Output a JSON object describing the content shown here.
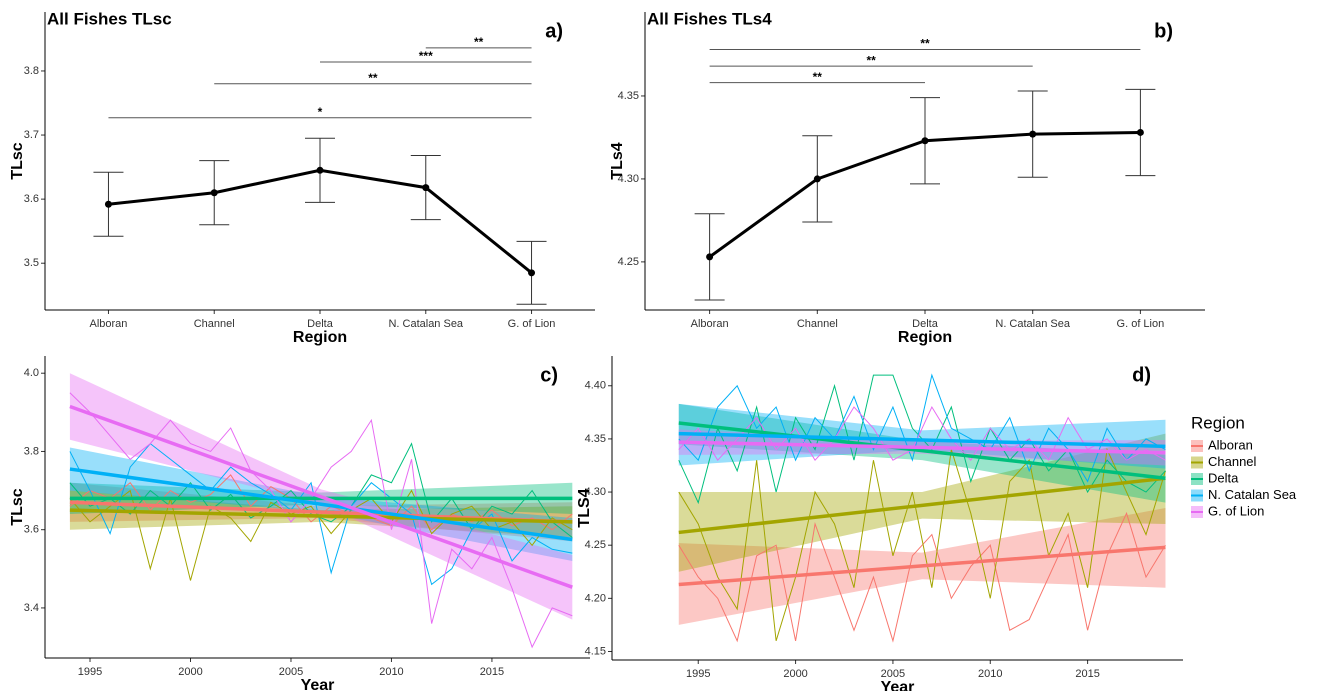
{
  "chart_data": [
    {
      "type": "line",
      "title": "All Fishes TLsc",
      "panel_label": "a)",
      "x_label": "Region",
      "y_label": "TLsc",
      "categories": [
        "Alboran",
        "Channel",
        "Delta",
        "N. Catalan Sea",
        "G. of Lion"
      ],
      "values": [
        3.592,
        3.61,
        3.645,
        3.618,
        3.485
      ],
      "errors": [
        0.05,
        0.05,
        0.05,
        0.05,
        0.049
      ],
      "color": "#000000",
      "ylim": [
        3.427,
        3.892
      ],
      "yticks": [
        3.5,
        3.6,
        3.7,
        3.8
      ],
      "brackets": [
        {
          "from": 0,
          "to": 4,
          "y": 3.727,
          "label": "*"
        },
        {
          "from": 1,
          "to": 4,
          "y": 3.78,
          "label": "**"
        },
        {
          "from": 2,
          "to": 4,
          "y": 3.814,
          "label": "***"
        },
        {
          "from": 3,
          "to": 4,
          "y": 3.836,
          "label": "**"
        }
      ]
    },
    {
      "type": "line",
      "title": "All Fishes TLs4",
      "panel_label": "b)",
      "x_label": "Region",
      "y_label": "TLs4",
      "categories": [
        "Alboran",
        "Channel",
        "Delta",
        "N. Catalan Sea",
        "G. of Lion"
      ],
      "values": [
        4.253,
        4.3,
        4.323,
        4.327,
        4.328
      ],
      "errors": [
        0.026,
        0.026,
        0.026,
        0.026,
        0.026
      ],
      "color": "#000000",
      "ylim": [
        4.221,
        4.4006
      ],
      "yticks": [
        4.25,
        {
          "value": 4.3,
          "label": "4.30"
        },
        4.35
      ],
      "brackets": [
        {
          "from": 0,
          "to": 2,
          "y": 4.358,
          "label": "**"
        },
        {
          "from": 0,
          "to": 3,
          "y": 4.368,
          "label": "**"
        },
        {
          "from": 0,
          "to": 4,
          "y": 4.378,
          "label": "**"
        }
      ]
    },
    {
      "type": "line",
      "panel_label": "c)",
      "x_label": "Year",
      "y_label": "TLsc",
      "x": [
        1994,
        1995,
        1996,
        1997,
        1998,
        1999,
        2000,
        2001,
        2002,
        2003,
        2004,
        2005,
        2006,
        2007,
        2008,
        2009,
        2010,
        2011,
        2012,
        2013,
        2014,
        2015,
        2016,
        2017,
        2018,
        2019
      ],
      "xlim": [
        1992.76,
        2019.88
      ],
      "xticks": [
        1995,
        2000,
        2005,
        2010,
        2015
      ],
      "ylim": [
        3.272,
        4.044
      ],
      "yticks": [
        3.4,
        3.6,
        3.8,
        {
          "value": 4.0,
          "label": "4.0"
        }
      ],
      "series": [
        {
          "color": "#F8766D",
          "values": [
            3.66,
            3.7,
            3.68,
            3.72,
            3.65,
            3.7,
            3.67,
            3.69,
            3.74,
            3.66,
            3.71,
            3.68,
            3.62,
            3.66,
            3.64,
            3.63,
            3.61,
            3.66,
            3.6,
            3.64,
            3.62,
            3.65,
            3.61,
            3.63,
            3.6,
            3.64
          ],
          "fit": {
            "x": [
              1994,
              2006.5,
              2019
            ],
            "values": [
              3.67,
              3.645,
              3.62
            ],
            "lower": [
              3.62,
              3.63,
              3.57
            ],
            "upper": [
              3.72,
              3.66,
              3.67
            ]
          }
        },
        {
          "color": "#A3A500",
          "values": [
            3.68,
            3.62,
            3.66,
            3.7,
            3.5,
            3.68,
            3.47,
            3.66,
            3.63,
            3.57,
            3.67,
            3.64,
            3.66,
            3.59,
            3.65,
            3.68,
            3.62,
            3.7,
            3.59,
            3.64,
            3.66,
            3.6,
            3.62,
            3.56,
            3.63,
            3.6
          ],
          "fit": {
            "x": [
              1994,
              2006.5,
              2019
            ],
            "values": [
              3.65,
              3.635,
              3.62
            ],
            "lower": [
              3.6,
              3.62,
              3.58
            ],
            "upper": [
              3.7,
              3.65,
              3.66
            ]
          }
        },
        {
          "color": "#00BF7D",
          "values": [
            3.72,
            3.66,
            3.68,
            3.64,
            3.7,
            3.66,
            3.72,
            3.65,
            3.69,
            3.63,
            3.66,
            3.7,
            3.64,
            3.62,
            3.66,
            3.74,
            3.72,
            3.82,
            3.62,
            3.68,
            3.6,
            3.66,
            3.64,
            3.7,
            3.62,
            3.58
          ],
          "fit": {
            "x": [
              1994,
              2006.5,
              2019
            ],
            "values": [
              3.68,
              3.68,
              3.68
            ],
            "lower": [
              3.64,
              3.665,
              3.64
            ],
            "upper": [
              3.72,
              3.695,
              3.72
            ]
          }
        },
        {
          "color": "#00B0F6",
          "values": [
            3.8,
            3.7,
            3.59,
            3.76,
            3.82,
            3.78,
            3.74,
            3.7,
            3.76,
            3.72,
            3.69,
            3.65,
            3.72,
            3.49,
            3.66,
            3.72,
            3.68,
            3.64,
            3.46,
            3.5,
            3.6,
            3.64,
            3.52,
            3.58,
            3.55,
            3.54
          ],
          "fit": {
            "x": [
              1994,
              2006.5,
              2019
            ],
            "values": [
              3.755,
              3.665,
              3.575
            ],
            "lower": [
              3.7,
              3.645,
              3.52
            ],
            "upper": [
              3.81,
              3.685,
              3.63
            ]
          }
        },
        {
          "color": "#E76BF3",
          "values": [
            3.95,
            3.9,
            3.84,
            3.78,
            3.82,
            3.88,
            3.82,
            3.8,
            3.86,
            3.75,
            3.7,
            3.62,
            3.68,
            3.76,
            3.8,
            3.88,
            3.6,
            3.78,
            3.36,
            3.55,
            3.5,
            3.58,
            3.45,
            3.3,
            3.4,
            3.38
          ],
          "fit": {
            "x": [
              1994,
              2006.5,
              2019
            ],
            "values": [
              3.915,
              3.684,
              3.453
            ],
            "lower": [
              3.83,
              3.665,
              3.37
            ],
            "upper": [
              4.0,
              3.703,
              3.535
            ]
          }
        }
      ]
    },
    {
      "type": "line",
      "panel_label": "d)",
      "x_label": "Year",
      "y_label": "TLS4",
      "legend": true,
      "legend_title": "Region",
      "x": [
        1994,
        1995,
        1996,
        1997,
        1998,
        1999,
        2000,
        2001,
        2002,
        2003,
        2004,
        2005,
        2006,
        2007,
        2008,
        2009,
        2010,
        2011,
        2012,
        2013,
        2014,
        2015,
        2016,
        2017,
        2018,
        2019
      ],
      "xlim": [
        1990.57,
        2019.9
      ],
      "xticks": [
        1995,
        2000,
        2005,
        2010,
        2015
      ],
      "ylim": [
        4.142,
        4.428
      ],
      "yticks": [
        4.15,
        {
          "value": 4.2,
          "label": "4.20"
        },
        4.25,
        {
          "value": 4.3,
          "label": "4.30"
        },
        4.35,
        {
          "value": 4.4,
          "label": "4.40"
        }
      ],
      "series": [
        {
          "name": "Alboran",
          "color": "#F8766D",
          "values": [
            4.25,
            4.22,
            4.2,
            4.16,
            4.24,
            4.25,
            4.16,
            4.27,
            4.22,
            4.17,
            4.22,
            4.16,
            4.24,
            4.26,
            4.2,
            4.23,
            4.25,
            4.17,
            4.18,
            4.22,
            4.26,
            4.17,
            4.24,
            4.28,
            4.22,
            4.25
          ],
          "fit": {
            "x": [
              1994,
              2006.5,
              2019
            ],
            "values": [
              4.213,
              4.2305,
              4.248
            ],
            "lower": [
              4.175,
              4.218,
              4.21
            ],
            "upper": [
              4.252,
              4.243,
              4.285
            ]
          }
        },
        {
          "name": "Channel",
          "color": "#A3A500",
          "values": [
            4.3,
            4.27,
            4.22,
            4.19,
            4.33,
            4.16,
            4.22,
            4.3,
            4.27,
            4.21,
            4.33,
            4.24,
            4.3,
            4.21,
            4.34,
            4.28,
            4.2,
            4.31,
            4.33,
            4.24,
            4.28,
            4.21,
            4.34,
            4.3,
            4.26,
            4.32
          ],
          "fit": {
            "x": [
              1994,
              2006.5,
              2019
            ],
            "values": [
              4.262,
              4.2875,
              4.313
            ],
            "lower": [
              4.225,
              4.275,
              4.27
            ],
            "upper": [
              4.3,
              4.3,
              4.355
            ]
          }
        },
        {
          "name": "Delta",
          "color": "#00BF7D",
          "values": [
            4.33,
            4.29,
            4.36,
            4.32,
            4.38,
            4.3,
            4.37,
            4.34,
            4.4,
            4.33,
            4.41,
            4.41,
            4.36,
            4.34,
            4.38,
            4.31,
            4.36,
            4.33,
            4.35,
            4.32,
            4.34,
            4.3,
            4.33,
            4.31,
            4.3,
            4.32
          ],
          "fit": {
            "x": [
              1994,
              2006.5,
              2019
            ],
            "values": [
              4.365,
              4.339,
              4.313
            ],
            "lower": [
              4.345,
              4.33,
              4.29
            ],
            "upper": [
              4.383,
              4.348,
              4.335
            ]
          }
        },
        {
          "name": "N. Catalan Sea",
          "color": "#00B0F6",
          "values": [
            4.35,
            4.33,
            4.38,
            4.4,
            4.36,
            4.38,
            4.33,
            4.37,
            4.35,
            4.39,
            4.34,
            4.38,
            4.33,
            4.41,
            4.36,
            4.35,
            4.34,
            4.37,
            4.32,
            4.36,
            4.34,
            4.31,
            4.36,
            4.33,
            4.35,
            4.34
          ],
          "fit": {
            "x": [
              1994,
              2006.5,
              2019
            ],
            "values": [
              4.355,
              4.349,
              4.343
            ],
            "lower": [
              4.325,
              4.34,
              4.322
            ],
            "upper": [
              4.383,
              4.358,
              4.368
            ]
          }
        },
        {
          "name": "G. of Lion",
          "color": "#E76BF3",
          "values": [
            4.34,
            4.36,
            4.33,
            4.35,
            4.37,
            4.34,
            4.36,
            4.33,
            4.35,
            4.38,
            4.36,
            4.33,
            4.34,
            4.38,
            4.35,
            4.33,
            4.36,
            4.34,
            4.35,
            4.33,
            4.37,
            4.34,
            4.35,
            4.33,
            4.34,
            4.33
          ],
          "fit": {
            "x": [
              1994,
              2006.5,
              2019
            ],
            "values": [
              4.347,
              4.342,
              4.337
            ],
            "lower": [
              4.335,
              4.336,
              4.325
            ],
            "upper": [
              4.359,
              4.348,
              4.349
            ]
          }
        }
      ]
    }
  ]
}
